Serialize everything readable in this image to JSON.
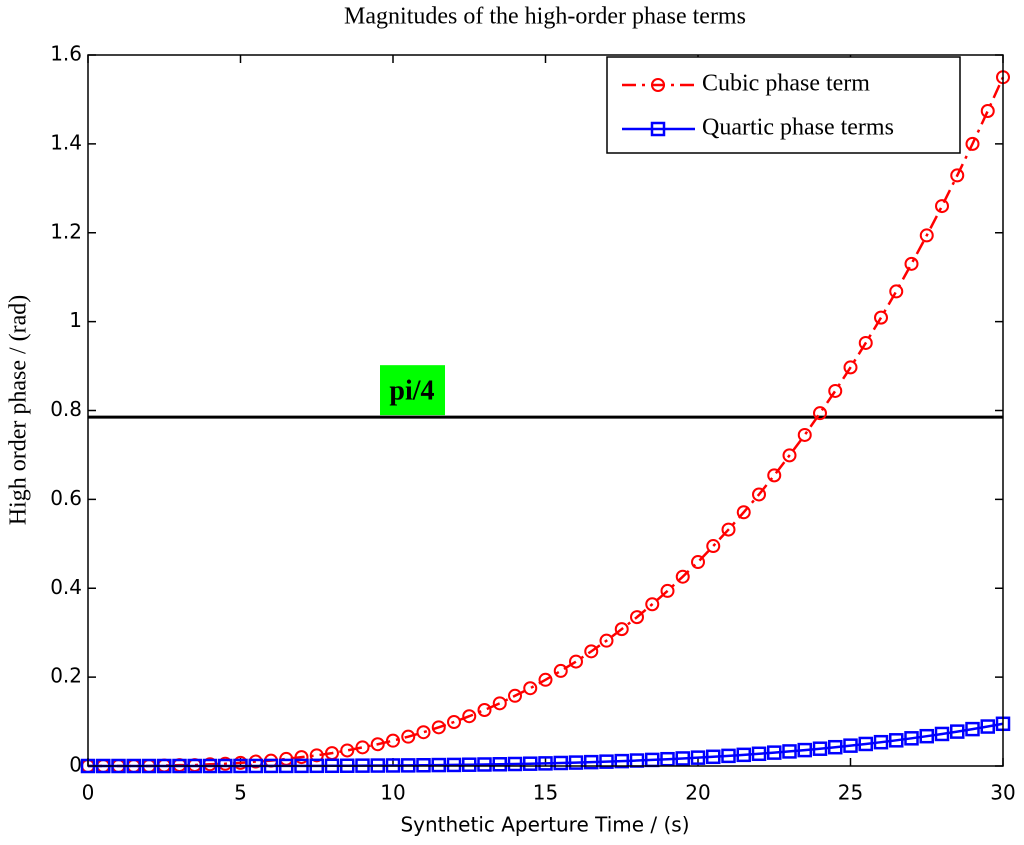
{
  "chart_data": {
    "type": "line",
    "title": "Magnitudes of the high-order phase terms",
    "xlabel": "Synthetic Aperture Time / (s)",
    "ylabel": "High order phase / (rad)",
    "x": [
      0,
      0.5,
      1,
      1.5,
      2,
      2.5,
      3,
      3.5,
      4,
      4.5,
      5,
      5.5,
      6,
      6.5,
      7,
      7.5,
      8,
      8.5,
      9,
      9.5,
      10,
      10.5,
      11,
      11.5,
      12,
      12.5,
      13,
      13.5,
      14,
      14.5,
      15,
      15.5,
      16,
      16.5,
      17,
      17.5,
      18,
      18.5,
      19,
      19.5,
      20,
      20.5,
      21,
      21.5,
      22,
      22.5,
      23,
      23.5,
      24,
      24.5,
      25,
      25.5,
      26,
      26.5,
      27,
      27.5,
      28,
      28.5,
      29,
      29.5,
      30
    ],
    "series": [
      {
        "name": "Cubic phase term",
        "color": "#ff0000",
        "line_style": "dashdot",
        "marker": "circle",
        "values": [
          0,
          0,
          0,
          0,
          0,
          0.001,
          0.002,
          0.002,
          0.004,
          0.005,
          0.007,
          0.01,
          0.012,
          0.016,
          0.02,
          0.024,
          0.029,
          0.035,
          0.042,
          0.049,
          0.057,
          0.066,
          0.076,
          0.087,
          0.099,
          0.112,
          0.126,
          0.141,
          0.158,
          0.175,
          0.194,
          0.214,
          0.235,
          0.258,
          0.282,
          0.308,
          0.335,
          0.364,
          0.394,
          0.426,
          0.459,
          0.495,
          0.532,
          0.571,
          0.611,
          0.654,
          0.699,
          0.745,
          0.794,
          0.844,
          0.897,
          0.952,
          1.009,
          1.068,
          1.13,
          1.194,
          1.26,
          1.329,
          1.4,
          1.474,
          1.55
        ]
      },
      {
        "name": "Quartic phase terms",
        "color": "#0000ff",
        "line_style": "solid",
        "marker": "square",
        "values": [
          0,
          0,
          0,
          0,
          0,
          0,
          0,
          0,
          0,
          0,
          0.0001,
          0.0001,
          0.0002,
          0.0002,
          0.0003,
          0.0004,
          0.0005,
          0.0006,
          0.0008,
          0.001,
          0.0012,
          0.0014,
          0.0017,
          0.0021,
          0.0024,
          0.0029,
          0.0034,
          0.0039,
          0.0045,
          0.0052,
          0.0059,
          0.0068,
          0.0077,
          0.0087,
          0.0098,
          0.011,
          0.0123,
          0.0137,
          0.0153,
          0.017,
          0.0188,
          0.0207,
          0.0228,
          0.0251,
          0.0275,
          0.0301,
          0.0328,
          0.0358,
          0.0389,
          0.0423,
          0.0458,
          0.0496,
          0.0536,
          0.0578,
          0.0623,
          0.0671,
          0.0721,
          0.0774,
          0.083,
          0.0888,
          0.095
        ]
      }
    ],
    "hline": {
      "value": 0.785,
      "label": "pi/4",
      "color": "#000000",
      "label_background": "#00ff00"
    },
    "xlim": [
      0,
      30
    ],
    "xticks": [
      0,
      5,
      10,
      15,
      20,
      25,
      30
    ],
    "ylim": [
      0,
      1.6
    ],
    "yticks": [
      0,
      0.2,
      0.4,
      0.6,
      0.8,
      1,
      1.2,
      1.4,
      1.6
    ],
    "grid": false,
    "legend": "upper right"
  }
}
